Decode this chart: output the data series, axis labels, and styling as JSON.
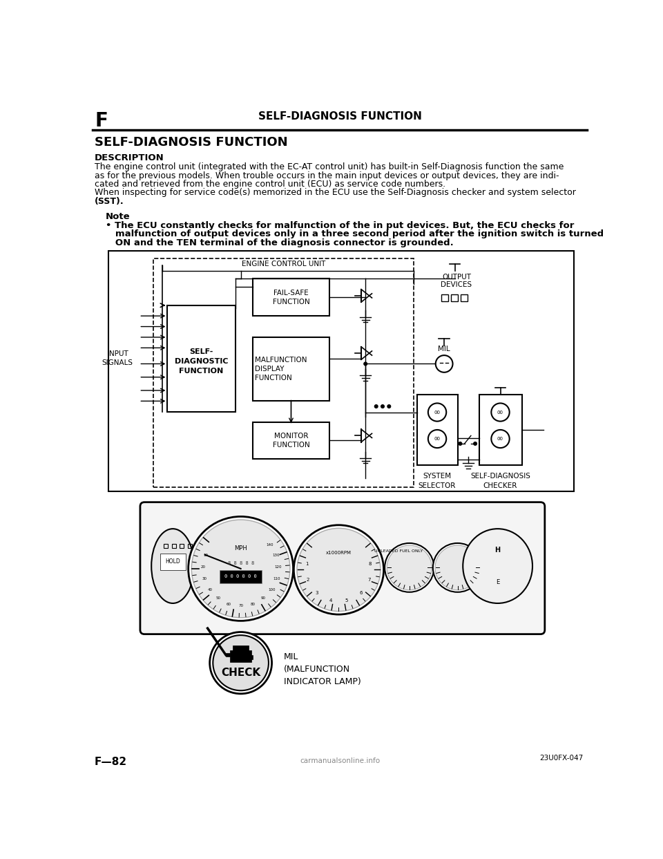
{
  "page_bg": "#ffffff",
  "header_letter": "F",
  "header_title": "SELF-DIAGNOSIS FUNCTION",
  "section_title": "SELF-DIAGNOSIS FUNCTION",
  "description_label": "DESCRIPTION",
  "desc_line1": "The engine control unit (integrated with the EC-AT control unit) has built-in Self-Diagnosis function the same",
  "desc_line2": "as for the previous models. When trouble occurs in the main input devices or output devices, they are indi-",
  "desc_line3": "cated and retrieved from the engine control unit (ECU) as service code numbers.",
  "desc_line4": "When inspecting for service code(s) memorized in the ECU use the Self-Diagnosis checker and system selector",
  "desc_line5": "(SST).",
  "note_label": "Note",
  "note_line1": "• The ECU constantly checks for malfunction of the in put devices. But, the ECU checks for",
  "note_line2": "   malfunction of output devices only in a three second period after the ignition switch is turned",
  "note_line3": "   ON and the TEN terminal of the diagnosis connector is grounded.",
  "lbl_ecu": "ENGINE CONTROL UNIT",
  "lbl_input": "INPUT\nSIGNALS",
  "lbl_self_diag": "SELF-\nDIAGNOSTIC\nFUNCTION",
  "lbl_fail_safe": "FAIL-SAFE\nFUNCTION",
  "lbl_malfunction": "MALFUNCTION\nDISPLAY\nFUNCTION",
  "lbl_monitor": "MONITOR\nFUNCTION",
  "lbl_output": "OUTPUT\nDEVICES",
  "lbl_mil": "MIL",
  "lbl_sys_sel": "SYSTEM\nSELECTOR",
  "lbl_checker": "SELF-DIAGNOSIS\nCHECKER",
  "lbl_mil_caption": "MIL\n(MALFUNCTION\nINDICATOR LAMP)",
  "lbl_check": "CHECK",
  "page_num": "F—82",
  "fig_ref": "23U0FX-047",
  "watermark": "carmanualsonline.info"
}
